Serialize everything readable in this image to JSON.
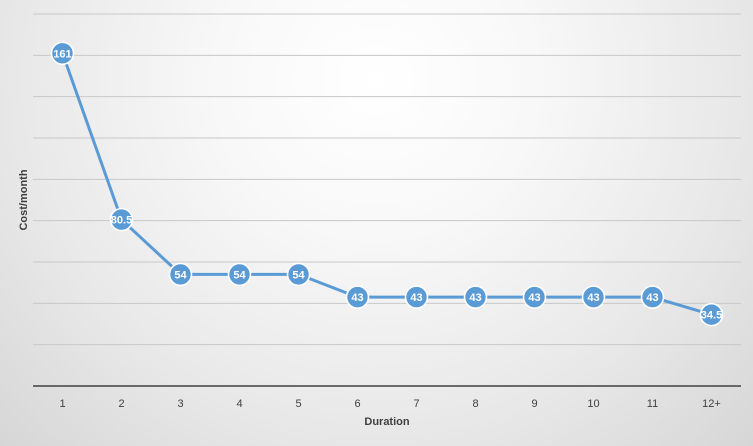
{
  "chart_data": {
    "type": "line",
    "title": "",
    "xlabel": "Duration",
    "ylabel": "Cost/month",
    "categories": [
      "1",
      "2",
      "3",
      "4",
      "5",
      "6",
      "7",
      "8",
      "9",
      "10",
      "11",
      "12+"
    ],
    "series": [
      {
        "values": [
          161,
          80.5,
          54,
          54,
          54,
          43,
          43,
          43,
          43,
          43,
          43,
          34.5
        ],
        "data_labels": [
          "161",
          "80.5",
          "54",
          "54",
          "54",
          "43",
          "43",
          "43",
          "43",
          "43",
          "43",
          "34.5"
        ]
      }
    ],
    "ylim": [
      0,
      180
    ],
    "grid": true,
    "legend": "none",
    "colors": {
      "series": "#5b9bd5",
      "marker_outline": "#ffffff",
      "grid": "#c8c8c8",
      "axis": "#404040",
      "label_text": "#ffffff",
      "tick_text": "#404040"
    }
  }
}
